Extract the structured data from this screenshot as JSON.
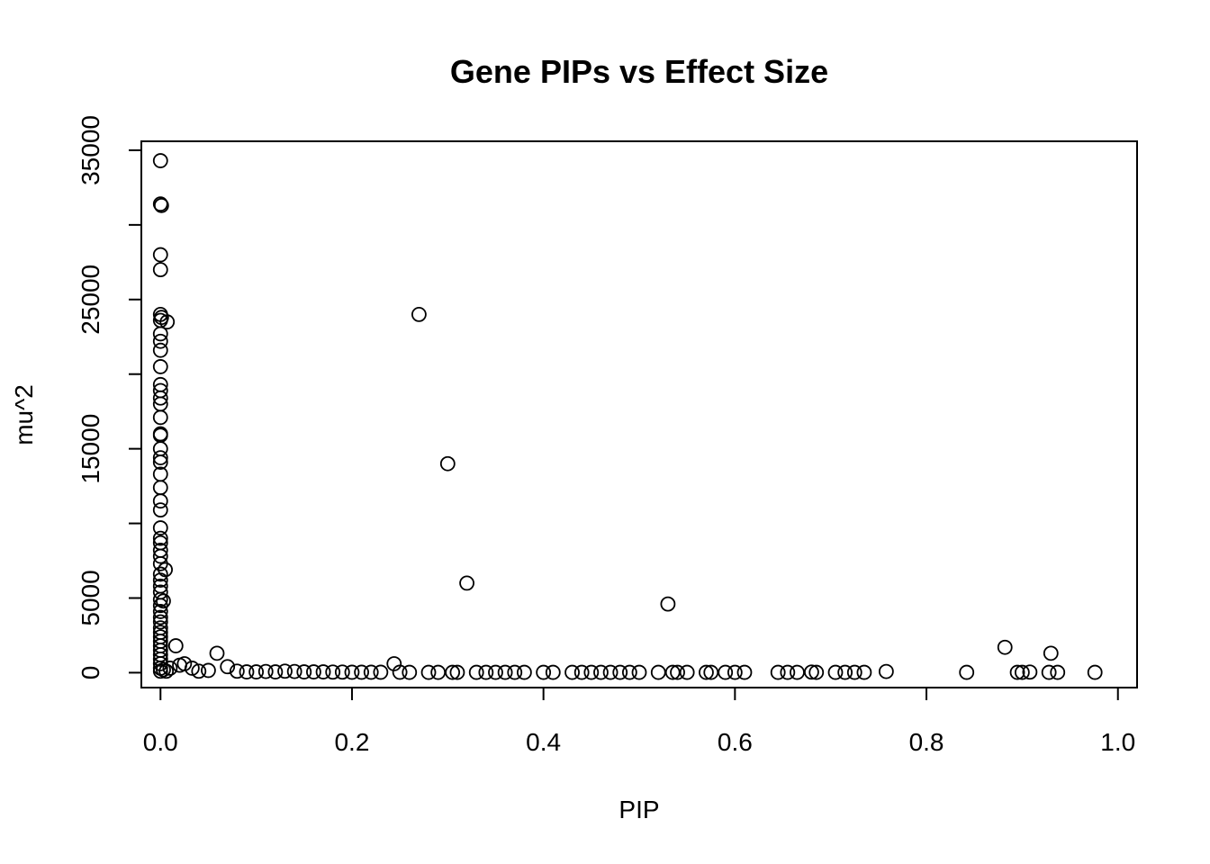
{
  "chart_data": {
    "type": "scatter",
    "title": "Gene PIPs vs Effect Size",
    "xlabel": "PIP",
    "ylabel": "mu^2",
    "xlim": [
      -0.02,
      1.02
    ],
    "ylim": [
      -1000,
      35600
    ],
    "xticks": [
      0.0,
      0.2,
      0.4,
      0.6,
      0.8,
      1.0
    ],
    "xtick_labels": [
      "0.0",
      "0.2",
      "0.4",
      "0.6",
      "0.8",
      "1.0"
    ],
    "yticks": [
      0,
      5000,
      10000,
      15000,
      20000,
      25000,
      30000,
      35000
    ],
    "ytick_labels": [
      "0",
      "5000",
      "",
      "15000",
      "",
      "25000",
      "",
      "35000"
    ],
    "grid": false,
    "legend": "none",
    "points": [
      [
        0.0,
        34300
      ],
      [
        0.0,
        31400
      ],
      [
        0.001,
        31300
      ],
      [
        0.0,
        28000
      ],
      [
        0.0,
        27000
      ],
      [
        0.0,
        24000
      ],
      [
        0.001,
        23800
      ],
      [
        0.0,
        23600
      ],
      [
        0.007,
        23500
      ],
      [
        0.0,
        22700
      ],
      [
        0.0,
        22200
      ],
      [
        0.0,
        21600
      ],
      [
        0.0,
        20500
      ],
      [
        0.0,
        19300
      ],
      [
        0.0,
        18900
      ],
      [
        0.0,
        18400
      ],
      [
        0.0,
        18000
      ],
      [
        0.0,
        17100
      ],
      [
        0.0,
        16000
      ],
      [
        0.0,
        15900
      ],
      [
        0.0,
        15000
      ],
      [
        0.0,
        14400
      ],
      [
        0.0,
        14100
      ],
      [
        0.0,
        13300
      ],
      [
        0.0,
        12400
      ],
      [
        0.0,
        11500
      ],
      [
        0.0,
        10900
      ],
      [
        0.0,
        9700
      ],
      [
        0.0,
        9000
      ],
      [
        0.0,
        8700
      ],
      [
        0.0,
        8200
      ],
      [
        0.0,
        7800
      ],
      [
        0.0,
        7300
      ],
      [
        0.005,
        6900
      ],
      [
        0.0,
        6600
      ],
      [
        0.0,
        6200
      ],
      [
        0.0,
        5800
      ],
      [
        0.0,
        5400
      ],
      [
        0.0,
        4900
      ],
      [
        0.003,
        4800
      ],
      [
        0.0,
        4500
      ],
      [
        0.0,
        4100
      ],
      [
        0.0,
        3700
      ],
      [
        0.0,
        3400
      ],
      [
        0.0,
        3000
      ],
      [
        0.0,
        2700
      ],
      [
        0.0,
        2400
      ],
      [
        0.0,
        2100
      ],
      [
        0.0,
        1800
      ],
      [
        0.0,
        1500
      ],
      [
        0.0,
        1200
      ],
      [
        0.0,
        900
      ],
      [
        0.0,
        600
      ],
      [
        0.0,
        300
      ],
      [
        0.0,
        100
      ],
      [
        0.003,
        200
      ],
      [
        0.006,
        100
      ],
      [
        0.01,
        300
      ],
      [
        0.016,
        1800
      ],
      [
        0.02,
        500
      ],
      [
        0.025,
        600
      ],
      [
        0.033,
        300
      ],
      [
        0.04,
        100
      ],
      [
        0.05,
        150
      ],
      [
        0.059,
        1300
      ],
      [
        0.07,
        400
      ],
      [
        0.08,
        100
      ],
      [
        0.09,
        50
      ],
      [
        0.1,
        50
      ],
      [
        0.11,
        80
      ],
      [
        0.12,
        50
      ],
      [
        0.13,
        100
      ],
      [
        0.14,
        80
      ],
      [
        0.15,
        50
      ],
      [
        0.16,
        50
      ],
      [
        0.17,
        50
      ],
      [
        0.18,
        40
      ],
      [
        0.19,
        40
      ],
      [
        0.2,
        30
      ],
      [
        0.21,
        30
      ],
      [
        0.22,
        30
      ],
      [
        0.23,
        30
      ],
      [
        0.244,
        600
      ],
      [
        0.25,
        30
      ],
      [
        0.26,
        20
      ],
      [
        0.27,
        24000
      ],
      [
        0.28,
        20
      ],
      [
        0.29,
        20
      ],
      [
        0.3,
        14000
      ],
      [
        0.305,
        20
      ],
      [
        0.31,
        20
      ],
      [
        0.32,
        6000
      ],
      [
        0.33,
        20
      ],
      [
        0.34,
        20
      ],
      [
        0.35,
        20
      ],
      [
        0.36,
        20
      ],
      [
        0.37,
        20
      ],
      [
        0.38,
        20
      ],
      [
        0.4,
        20
      ],
      [
        0.41,
        20
      ],
      [
        0.43,
        20
      ],
      [
        0.44,
        20
      ],
      [
        0.45,
        20
      ],
      [
        0.46,
        20
      ],
      [
        0.47,
        20
      ],
      [
        0.48,
        20
      ],
      [
        0.49,
        20
      ],
      [
        0.5,
        20
      ],
      [
        0.52,
        20
      ],
      [
        0.53,
        4600
      ],
      [
        0.535,
        20
      ],
      [
        0.54,
        20
      ],
      [
        0.55,
        20
      ],
      [
        0.57,
        20
      ],
      [
        0.575,
        20
      ],
      [
        0.59,
        20
      ],
      [
        0.6,
        20
      ],
      [
        0.61,
        20
      ],
      [
        0.645,
        20
      ],
      [
        0.655,
        20
      ],
      [
        0.665,
        20
      ],
      [
        0.68,
        40
      ],
      [
        0.685,
        20
      ],
      [
        0.705,
        20
      ],
      [
        0.715,
        20
      ],
      [
        0.725,
        20
      ],
      [
        0.735,
        20
      ],
      [
        0.758,
        80
      ],
      [
        0.842,
        20
      ],
      [
        0.882,
        1700
      ],
      [
        0.895,
        20
      ],
      [
        0.9,
        20
      ],
      [
        0.908,
        40
      ],
      [
        0.928,
        20
      ],
      [
        0.93,
        1300
      ],
      [
        0.937,
        20
      ],
      [
        0.976,
        20
      ]
    ]
  }
}
